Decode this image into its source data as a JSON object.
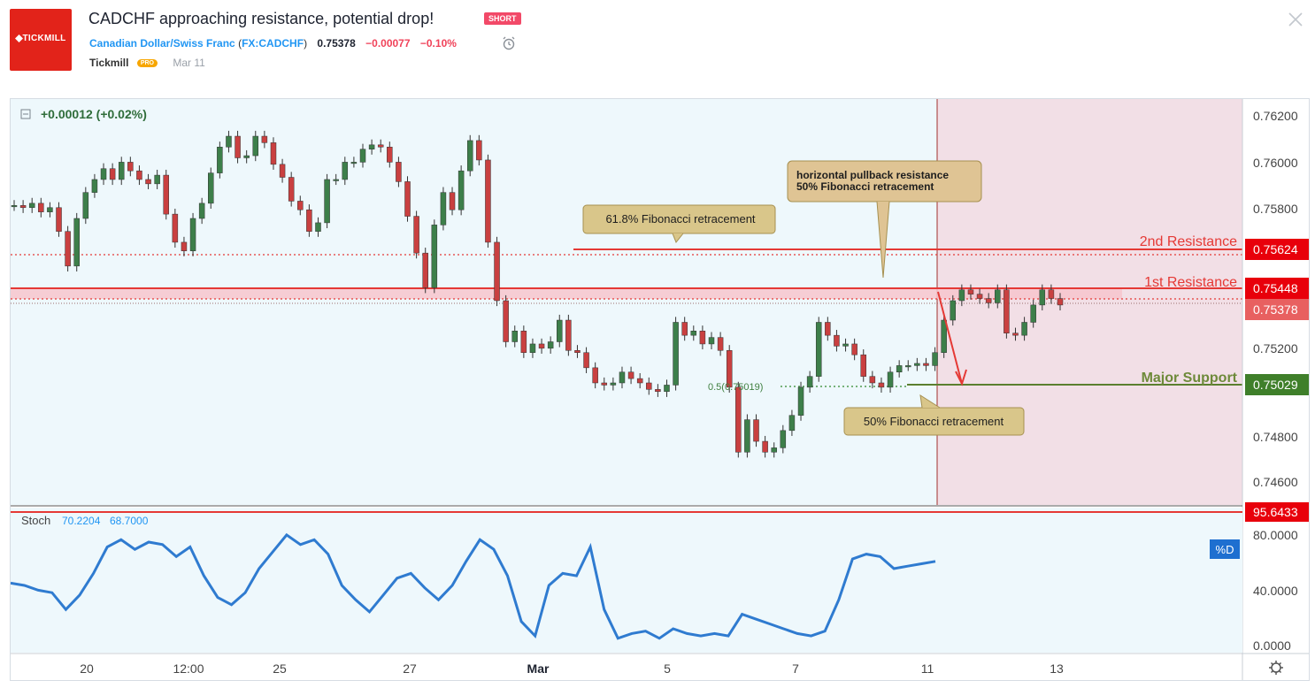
{
  "header": {
    "logo_text": "TICKMILL",
    "title": "CADCHF approaching resistance, potential drop!",
    "badge": "SHORT",
    "symbol_name": "Canadian Dollar/Swiss Franc",
    "symbol_code": "FX:CADCHF",
    "price": "0.75378",
    "change": "−0.00077",
    "change_pct": "−0.10%",
    "author": "Tickmill",
    "author_badge": "PRO",
    "date": "Mar 11",
    "icons": {
      "alarm": "alarm-clock-icon",
      "close": "close-icon"
    }
  },
  "chart": {
    "legend_change": "+0.00012 (+0.02%)",
    "price_axis": [
      "0.76200",
      "0.76000",
      "0.75800",
      "0.75600",
      "0.75400",
      "0.75200",
      "0.75000",
      "0.74800",
      "0.74600"
    ],
    "time_axis": [
      "20",
      "12:00",
      "25",
      "27",
      "Mar",
      "5",
      "7",
      "11",
      "13"
    ],
    "labels": {
      "second_resistance": "2nd Resistance",
      "second_resistance_price": "0.75624",
      "first_resistance": "1st Resistance",
      "first_resistance_price": "0.75448",
      "current_price": "0.75378",
      "major_support": "Major Support",
      "major_support_price": "0.75029",
      "fib_level": "0.5(0.75019)"
    },
    "callouts": {
      "fib618": "61.8% Fibonacci retracement",
      "pullback_line1": "horizontal pullback resistance",
      "pullback_line2": "50% Fibonacci retracement",
      "fib50": "50% Fibonacci retracement"
    },
    "colors": {
      "panel_bg": "#eef8fc",
      "projection_bg": "#f2dfe6",
      "resistance": "#e53935",
      "support": "#5b7f2f",
      "stoch_line": "#2f7bd0",
      "up_candle": "#3d7f4a",
      "down_candle": "#c94040"
    }
  },
  "stoch": {
    "label": "Stoch",
    "value1": "70.2204",
    "value2": "68.7000",
    "axis": [
      "80.0000",
      "40.0000",
      "0.0000"
    ],
    "level_price": "95.6433",
    "series_badge": "%D"
  },
  "chart_data": {
    "type": "line",
    "title": "CADCHF approaching resistance, potential drop!",
    "xlabel": "",
    "ylabel": "",
    "ylim": [
      0.7455,
      0.7625
    ],
    "levels": [
      {
        "name": "2nd Resistance",
        "value": 0.75624
      },
      {
        "name": "1st Resistance",
        "value": 0.75448
      },
      {
        "name": "Major Support",
        "value": 0.75029
      },
      {
        "name": "0.5 Fibonacci",
        "value": 0.75019
      }
    ],
    "series": [
      {
        "values": [
          0.7584,
          0.7583,
          0.7585,
          0.7581,
          0.7583,
          0.7572,
          0.7556,
          0.7578,
          0.759,
          0.7596,
          0.7601,
          0.7596,
          0.7604,
          0.76,
          0.7596,
          0.7594,
          0.7598,
          0.758,
          0.7567,
          0.7563,
          0.7578,
          0.7585,
          0.7599,
          0.7611,
          0.7616,
          0.7606,
          0.7607,
          0.7616,
          0.7613,
          0.7603,
          0.7597,
          0.7586,
          0.7582,
          0.7572,
          0.7576,
          0.7596,
          0.7596,
          0.7604,
          0.7604,
          0.761,
          0.7612,
          0.7611,
          0.7604,
          0.7595,
          0.7579,
          0.7562,
          0.7546,
          0.7575,
          0.759,
          0.7582,
          0.76,
          0.7614,
          0.7605,
          0.7567,
          0.754,
          0.7521,
          0.7526,
          0.7516,
          0.752,
          0.7518,
          0.7521,
          0.7531,
          0.7517,
          0.7516,
          0.7509,
          0.7502,
          0.7501,
          0.7502,
          0.7507,
          0.7504,
          0.7502,
          0.7499,
          0.7498,
          0.7501,
          0.753,
          0.7524,
          0.7526,
          0.752,
          0.7523,
          0.7517,
          0.75,
          0.747,
          0.7485,
          0.7475,
          0.747,
          0.7472,
          0.748,
          0.7487,
          0.75,
          0.7505,
          0.753,
          0.7524,
          0.7519,
          0.752,
          0.7515,
          0.7505,
          0.7502,
          0.75,
          0.7507,
          0.751,
          0.751,
          0.7511,
          0.751,
          0.7516,
          0.7531,
          0.754,
          0.7545,
          0.7543,
          0.7541,
          0.7539,
          0.7545,
          0.7525,
          0.7524,
          0.753,
          0.7538,
          0.7545,
          0.7541,
          0.7538
        ],
        "name": ""
      }
    ]
  }
}
